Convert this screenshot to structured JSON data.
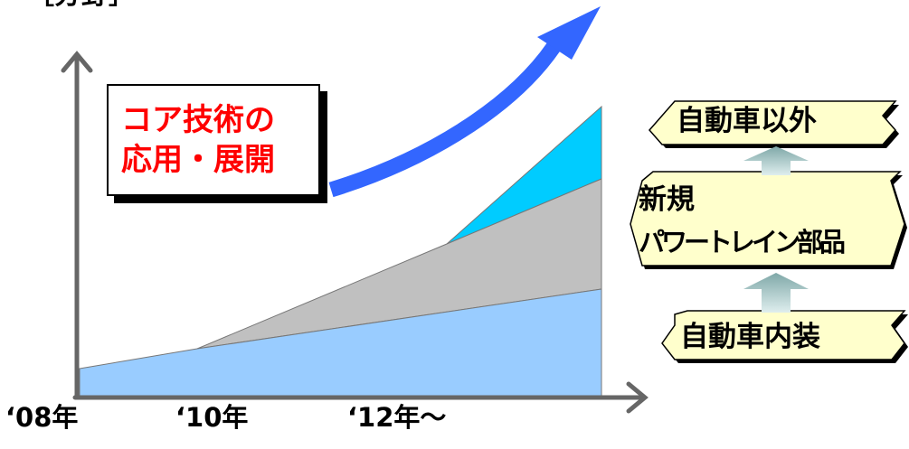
{
  "unit_label": "［分野］",
  "callout": {
    "line1": "コア技術の",
    "line2": "応用・展開",
    "text_color": "#ff0000"
  },
  "x_axis_labels": [
    "‘08年",
    "‘10年",
    "‘12年～"
  ],
  "ladder": {
    "top": "自動車以外",
    "middle_line1": "新規",
    "middle_line2": "パワートレイン部品",
    "bottom": "自動車内装"
  },
  "colors": {
    "layer_base": "#99ccff",
    "layer_middle": "#c0c0c0",
    "layer_top": "#00ccff",
    "growth_arrow": "#3366ff",
    "axis": "#666666",
    "tag_fill": "#ffffcc",
    "up_arrow": "#669999"
  },
  "icons": {
    "growth_arrow": "curved-up-arrow-icon",
    "ladder_arrows": "up-arrow-icon"
  }
}
